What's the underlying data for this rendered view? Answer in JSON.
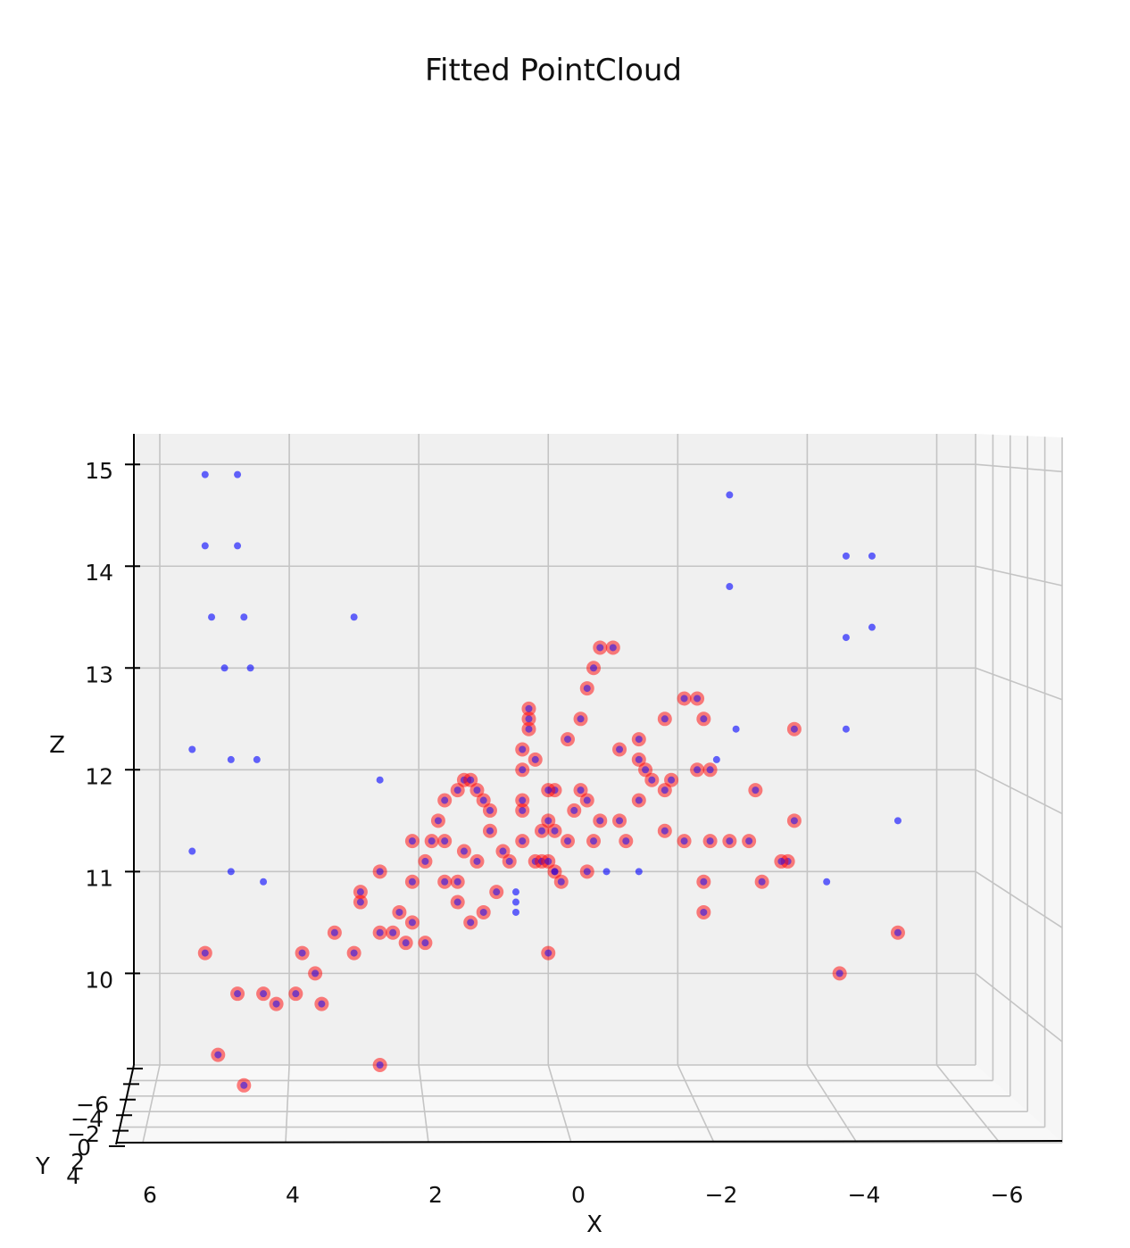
{
  "chart_data": {
    "type": "scatter",
    "projection": "3d",
    "title": "Fitted PointCloud",
    "xlabel": "X",
    "ylabel": "Y",
    "zlabel": "Z",
    "x_ticks": [
      "6",
      "4",
      "2",
      "0",
      "−2",
      "−4",
      "−6"
    ],
    "x_tick_values": [
      6,
      4,
      2,
      0,
      -2,
      -4,
      -6
    ],
    "y_ticks": [
      "−6",
      "−4",
      "−2",
      "0",
      "2",
      "4"
    ],
    "z_ticks": [
      "10",
      "11",
      "12",
      "13",
      "14",
      "15"
    ],
    "z_tick_values": [
      10,
      11,
      12,
      13,
      14,
      15
    ],
    "xlim": [
      6.4,
      -6.6
    ],
    "zlim": [
      9.1,
      15.3
    ],
    "grid": true,
    "colors": {
      "red": "#ff0000",
      "blue": "#0000ff",
      "pane": "#f0f0f0",
      "grid": "#c4c4c4"
    },
    "series": [
      {
        "color": "#0000ff",
        "marker": "small dot",
        "points": [
          [
            5.3,
            14.9
          ],
          [
            4.8,
            14.9
          ],
          [
            5.3,
            14.2
          ],
          [
            4.8,
            14.2
          ],
          [
            5.2,
            13.5
          ],
          [
            4.7,
            13.5
          ],
          [
            3.0,
            13.5
          ],
          [
            5.0,
            13.0
          ],
          [
            4.6,
            13.0
          ],
          [
            5.5,
            12.2
          ],
          [
            4.9,
            12.1
          ],
          [
            4.5,
            12.1
          ],
          [
            2.6,
            11.9
          ],
          [
            5.5,
            11.2
          ],
          [
            4.9,
            11.0
          ],
          [
            4.4,
            10.9
          ],
          [
            -2.8,
            14.7
          ],
          [
            -2.8,
            13.8
          ],
          [
            -4.6,
            14.1
          ],
          [
            -5.0,
            14.1
          ],
          [
            -4.6,
            13.3
          ],
          [
            -5.0,
            13.4
          ],
          [
            -2.9,
            12.4
          ],
          [
            -4.6,
            12.4
          ],
          [
            -2.6,
            12.1
          ],
          [
            -5.4,
            11.5
          ],
          [
            -1.4,
            11.0
          ],
          [
            -0.9,
            11.0
          ],
          [
            -4.3,
            10.9
          ],
          [
            -0.1,
            11.0
          ],
          [
            0.5,
            10.8
          ],
          [
            0.5,
            10.7
          ],
          [
            0.5,
            10.6
          ]
        ]
      },
      {
        "color": "#ff0000",
        "marker": "circle, translucent ring",
        "points": [
          [
            5.3,
            10.2
          ],
          [
            5.1,
            9.2
          ],
          [
            4.8,
            9.8
          ],
          [
            4.7,
            8.9
          ],
          [
            4.4,
            9.8
          ],
          [
            4.2,
            9.7
          ],
          [
            3.9,
            9.8
          ],
          [
            3.8,
            10.2
          ],
          [
            3.6,
            10.0
          ],
          [
            3.5,
            9.7
          ],
          [
            3.3,
            10.4
          ],
          [
            3.0,
            10.2
          ],
          [
            2.9,
            10.8
          ],
          [
            2.9,
            10.7
          ],
          [
            2.6,
            11.0
          ],
          [
            2.6,
            10.4
          ],
          [
            2.6,
            9.1
          ],
          [
            2.4,
            10.4
          ],
          [
            2.3,
            10.6
          ],
          [
            2.2,
            10.3
          ],
          [
            2.1,
            10.5
          ],
          [
            2.1,
            10.9
          ],
          [
            1.9,
            10.3
          ],
          [
            1.9,
            11.1
          ],
          [
            2.1,
            11.3
          ],
          [
            1.8,
            11.3
          ],
          [
            1.7,
            11.5
          ],
          [
            1.6,
            10.9
          ],
          [
            1.6,
            11.3
          ],
          [
            1.6,
            11.7
          ],
          [
            1.4,
            11.8
          ],
          [
            1.3,
            11.9
          ],
          [
            1.2,
            11.9
          ],
          [
            1.1,
            11.8
          ],
          [
            1.0,
            11.7
          ],
          [
            0.9,
            11.6
          ],
          [
            0.9,
            11.4
          ],
          [
            1.3,
            11.2
          ],
          [
            1.4,
            10.7
          ],
          [
            1.4,
            10.9
          ],
          [
            1.2,
            10.5
          ],
          [
            1.0,
            10.6
          ],
          [
            1.1,
            11.1
          ],
          [
            0.8,
            10.8
          ],
          [
            0.7,
            11.2
          ],
          [
            0.6,
            11.1
          ],
          [
            0.4,
            11.3
          ],
          [
            0.4,
            11.6
          ],
          [
            0.4,
            11.7
          ],
          [
            0.2,
            11.1
          ],
          [
            0.1,
            11.1
          ],
          [
            0.0,
            11.1
          ],
          [
            -0.1,
            11.0
          ],
          [
            -0.2,
            10.9
          ],
          [
            -0.1,
            11.4
          ],
          [
            -0.3,
            11.3
          ],
          [
            0.0,
            11.5
          ],
          [
            -0.1,
            11.8
          ],
          [
            0.0,
            11.8
          ],
          [
            -0.4,
            11.6
          ],
          [
            -0.5,
            11.8
          ],
          [
            -0.6,
            11.7
          ],
          [
            -0.7,
            11.3
          ],
          [
            -0.6,
            11.0
          ],
          [
            -0.8,
            11.5
          ],
          [
            0.4,
            12.0
          ],
          [
            0.4,
            12.2
          ],
          [
            0.3,
            12.4
          ],
          [
            0.3,
            12.5
          ],
          [
            0.3,
            12.6
          ],
          [
            0.2,
            12.1
          ],
          [
            0.1,
            11.4
          ],
          [
            0.0,
            10.2
          ],
          [
            -0.3,
            12.3
          ],
          [
            -0.5,
            12.5
          ],
          [
            -0.6,
            12.8
          ],
          [
            -0.7,
            13.0
          ],
          [
            -0.8,
            13.2
          ],
          [
            -1.0,
            13.2
          ],
          [
            -1.1,
            12.2
          ],
          [
            -1.4,
            12.3
          ],
          [
            -1.5,
            12.0
          ],
          [
            -1.8,
            12.5
          ],
          [
            -2.1,
            12.7
          ],
          [
            -2.3,
            12.7
          ],
          [
            -2.4,
            12.5
          ],
          [
            -1.4,
            12.1
          ],
          [
            -1.6,
            11.9
          ],
          [
            -1.9,
            11.9
          ],
          [
            -1.8,
            11.8
          ],
          [
            -2.3,
            12.0
          ],
          [
            -2.5,
            12.0
          ],
          [
            -1.1,
            11.5
          ],
          [
            -1.2,
            11.3
          ],
          [
            -1.4,
            11.7
          ],
          [
            -1.8,
            11.4
          ],
          [
            -2.1,
            11.3
          ],
          [
            -2.5,
            11.3
          ],
          [
            -2.8,
            11.3
          ],
          [
            -3.1,
            11.3
          ],
          [
            -2.4,
            10.9
          ],
          [
            -2.4,
            10.6
          ],
          [
            -3.2,
            11.8
          ],
          [
            -3.7,
            11.1
          ],
          [
            -3.6,
            11.1
          ],
          [
            -3.3,
            10.9
          ],
          [
            -3.8,
            11.5
          ],
          [
            -3.8,
            12.4
          ],
          [
            -4.5,
            10.0
          ],
          [
            -5.4,
            10.4
          ]
        ]
      }
    ]
  }
}
